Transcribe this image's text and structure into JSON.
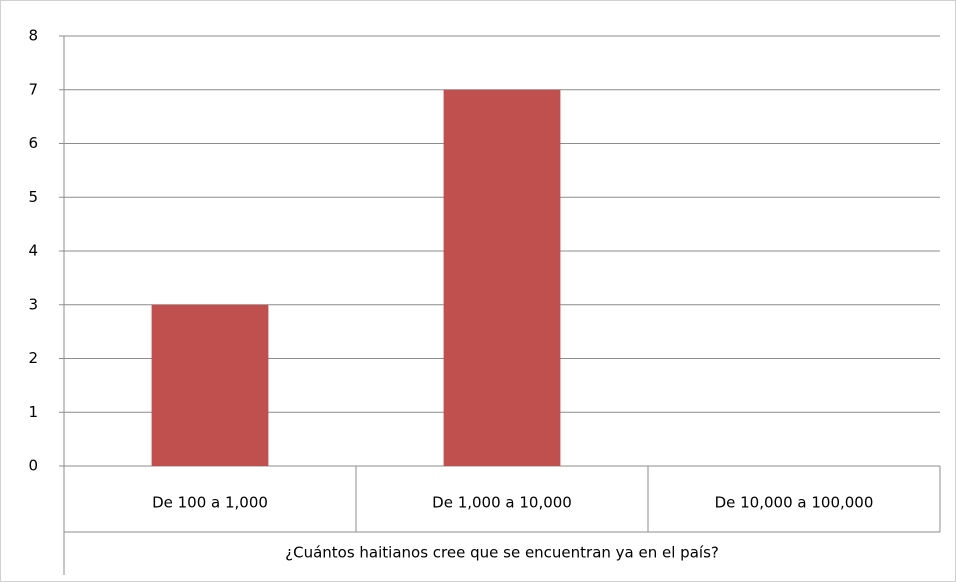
{
  "chart_data": {
    "type": "bar",
    "categories": [
      "De 100 a 1,000",
      "De 1,000 a 10,000",
      "De 10,000 a 100,000"
    ],
    "values": [
      3,
      7,
      0
    ],
    "color": "#c0504d",
    "xlabel": "¿Cuántos haitianos cree que se encuentran ya en el país?",
    "ylim": [
      0,
      8
    ],
    "yticks": [
      0,
      1,
      2,
      3,
      4,
      5,
      6,
      7,
      8
    ],
    "grid": true
  }
}
